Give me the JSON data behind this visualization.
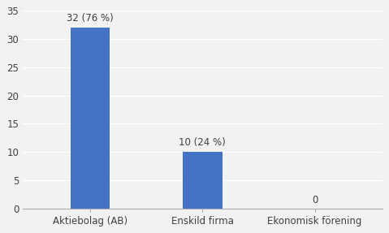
{
  "categories": [
    "Aktiebolag (AB)",
    "Enskild firma",
    "Ekonomisk förening"
  ],
  "values": [
    32,
    10,
    0
  ],
  "labels": [
    "32 (76 %)",
    "10 (24 %)",
    "0"
  ],
  "bar_color": "#4472C4",
  "ylim": [
    0,
    35
  ],
  "yticks": [
    0,
    5,
    10,
    15,
    20,
    25,
    30,
    35
  ],
  "background_color": "#f2f2f2",
  "grid_color": "#ffffff",
  "tick_label_fontsize": 8.5,
  "bar_label_fontsize": 8.5,
  "bar_width": 0.35
}
